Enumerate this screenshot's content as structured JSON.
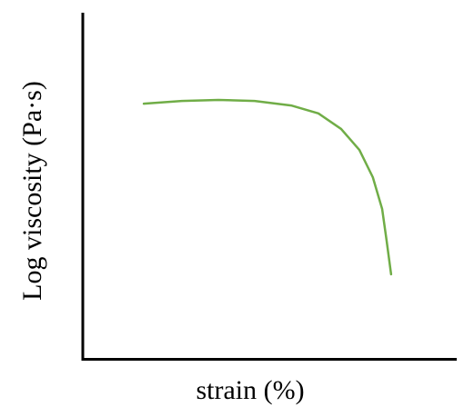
{
  "chart_data": {
    "type": "line",
    "x_label": "strain (%)",
    "y_label": "Log  viscosity (Pa·s)",
    "xlim": [
      0,
      100
    ],
    "ylim": [
      0,
      100
    ],
    "x": [
      16.6,
      26.8,
      36.6,
      46.3,
      56.1,
      63.4,
      69.5,
      74.4,
      78.0,
      80.5,
      81.7,
      82.9
    ],
    "series": [
      {
        "color": "#70ad47",
        "values": [
          73.9,
          74.7,
          75.0,
          74.7,
          73.4,
          71.1,
          66.6,
          60.5,
          52.6,
          43.4,
          34.2,
          24.5
        ]
      }
    ]
  }
}
